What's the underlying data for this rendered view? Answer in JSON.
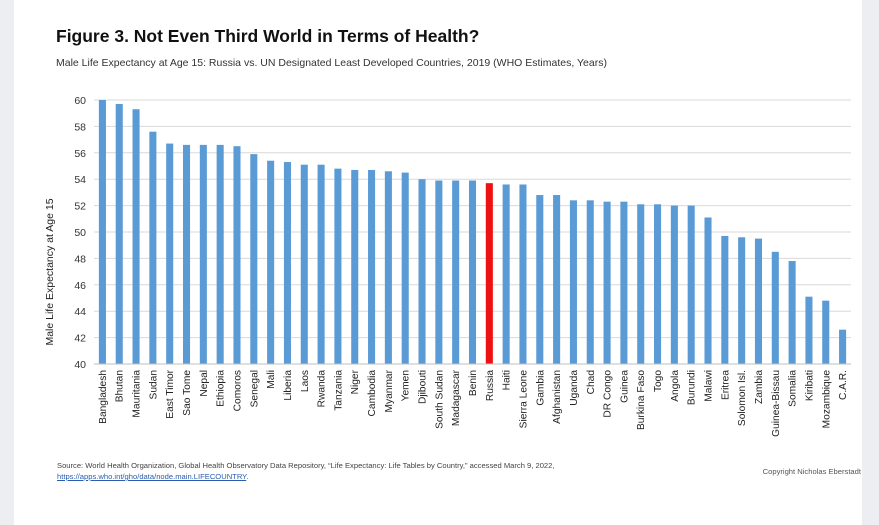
{
  "header": {
    "title": "Figure 3. Not Even Third World in Terms of Health?",
    "subtitle": "Male Life Expectancy at Age 15: Russia vs. UN Designated Least Developed Countries, 2019 (WHO Estimates, Years)"
  },
  "footer": {
    "source_text": "Source: World Health Organization, Global Health Observatory Data Repository, “Life Expectancy: Life Tables by Country,” accessed March 9, 2022, ",
    "source_link": "https://apps.who.int/gho/data/node.main.LIFECOUNTRY",
    "source_end": ".",
    "copyright": "Copyright Nicholas Eberstadt"
  },
  "colors": {
    "bar": "#5b9bd5",
    "highlight": "#ee1111",
    "grid": "#d9d9d9"
  },
  "chart_data": {
    "type": "bar",
    "ylabel": "Male Life Expectancy at Age 15",
    "ylim": [
      40,
      60
    ],
    "yticks": [
      40,
      42,
      44,
      46,
      48,
      50,
      52,
      54,
      56,
      58,
      60
    ],
    "grid": true,
    "highlight_category": "Russia",
    "categories": [
      "Bangladesh",
      "Bhutan",
      "Mauritania",
      "Sudan",
      "East Timor",
      "Sao Tome",
      "Nepal",
      "Ethiopia",
      "Comoros",
      "Senegal",
      "Mali",
      "Liberia",
      "Laos",
      "Rwanda",
      "Tanzania",
      "Niger",
      "Cambodia",
      "Myanmar",
      "Yemen",
      "Djibouti",
      "South Sudan",
      "Madagascar",
      "Benin",
      "Russia",
      "Haiti",
      "Sierra Leone",
      "Gambia",
      "Afghanistan",
      "Uganda",
      "Chad",
      "DR Congo",
      "Guinea",
      "Burkina Faso",
      "Togo",
      "Angola",
      "Burundi",
      "Malawi",
      "Eritrea",
      "Solomon Isl.",
      "Zambia",
      "Guinea-Bissau",
      "Somalia",
      "Kiribati",
      "Mozambique",
      "C.A.R."
    ],
    "values": [
      60.0,
      59.7,
      59.3,
      57.6,
      56.7,
      56.6,
      56.6,
      56.6,
      56.5,
      55.9,
      55.4,
      55.3,
      55.1,
      55.1,
      54.8,
      54.7,
      54.7,
      54.6,
      54.5,
      54.0,
      53.9,
      53.9,
      53.9,
      53.7,
      53.6,
      53.6,
      52.8,
      52.8,
      52.4,
      52.4,
      52.3,
      52.3,
      52.1,
      52.1,
      52.0,
      52.0,
      51.1,
      49.7,
      49.6,
      49.5,
      48.5,
      47.8,
      45.1,
      44.8,
      42.6
    ]
  }
}
